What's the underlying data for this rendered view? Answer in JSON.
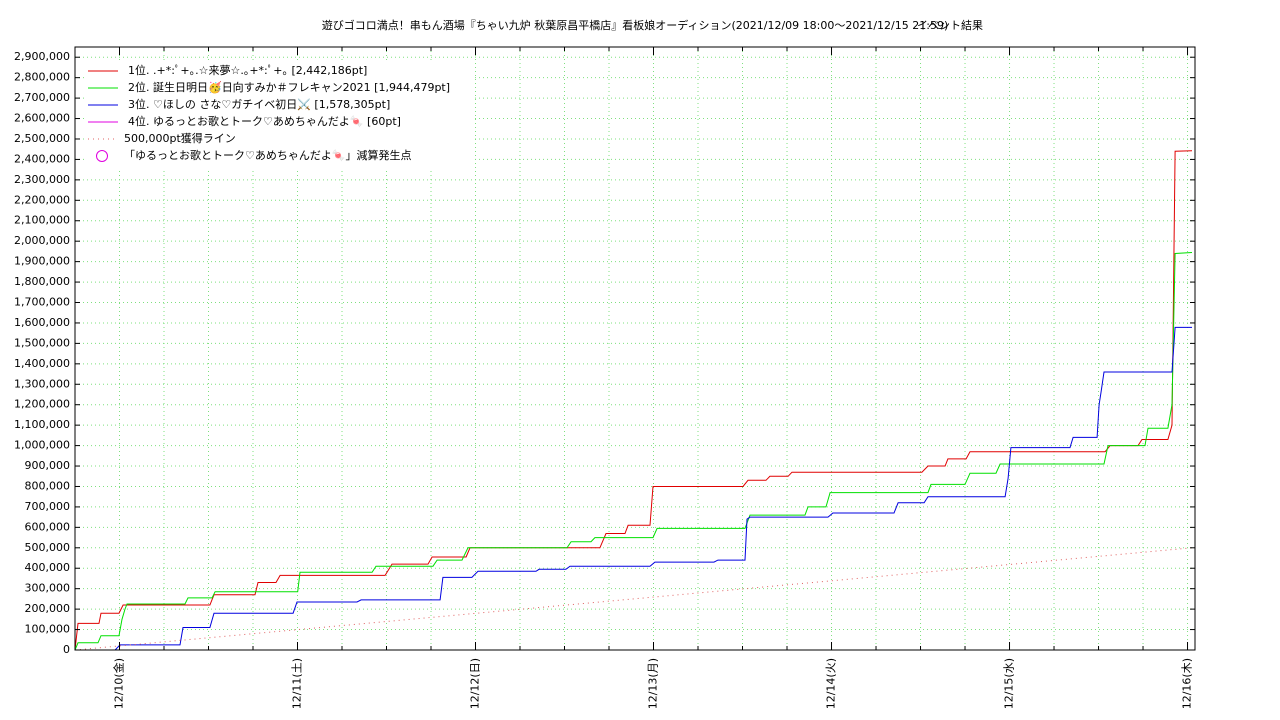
{
  "chart_data": {
    "type": "line",
    "title": "遊びゴコロ満点！串もん酒場『ちゃい九炉 秋葉原昌平橋店』看板娘オーディション(2021/12/09 18:00〜2021/12/15 21:59)",
    "subtitle": "イベント結果",
    "xlim": [
      9.75,
      16.042
    ],
    "xticks": [
      {
        "value": 10,
        "label": "12/10(金)"
      },
      {
        "value": 11,
        "label": "12/11(土)"
      },
      {
        "value": 12,
        "label": "12/12(日)"
      },
      {
        "value": 13,
        "label": "12/13(月)"
      },
      {
        "value": 14,
        "label": "12/14(火)"
      },
      {
        "value": 15,
        "label": "12/15(水)"
      },
      {
        "value": 16,
        "label": "12/16(木)"
      }
    ],
    "xminorticks": [
      10.25,
      10.5,
      10.75,
      11.25,
      11.5,
      11.75,
      12.25,
      12.5,
      12.75,
      13.25,
      13.5,
      13.75,
      14.25,
      14.5,
      14.75,
      15.25,
      15.5,
      15.75
    ],
    "ylim": [
      0,
      2950000
    ],
    "yticks": [
      {
        "value": 0,
        "label": "0"
      },
      {
        "value": 100000,
        "label": "100,000"
      },
      {
        "value": 200000,
        "label": "200,000"
      },
      {
        "value": 300000,
        "label": "300,000"
      },
      {
        "value": 400000,
        "label": "400,000"
      },
      {
        "value": 500000,
        "label": "500,000"
      },
      {
        "value": 600000,
        "label": "600,000"
      },
      {
        "value": 700000,
        "label": "700,000"
      },
      {
        "value": 800000,
        "label": "800,000"
      },
      {
        "value": 900000,
        "label": "900,000"
      },
      {
        "value": 1000000,
        "label": "1,000,000"
      },
      {
        "value": 1100000,
        "label": "1,100,000"
      },
      {
        "value": 1200000,
        "label": "1,200,000"
      },
      {
        "value": 1300000,
        "label": "1,300,000"
      },
      {
        "value": 1400000,
        "label": "1,400,000"
      },
      {
        "value": 1500000,
        "label": "1,500,000"
      },
      {
        "value": 1600000,
        "label": "1,600,000"
      },
      {
        "value": 1700000,
        "label": "1,700,000"
      },
      {
        "value": 1800000,
        "label": "1,800,000"
      },
      {
        "value": 1900000,
        "label": "1,900,000"
      },
      {
        "value": 2000000,
        "label": "2,000,000"
      },
      {
        "value": 2100000,
        "label": "2,100,000"
      },
      {
        "value": 2200000,
        "label": "2,200,000"
      },
      {
        "value": 2300000,
        "label": "2,300,000"
      },
      {
        "value": 2400000,
        "label": "2,400,000"
      },
      {
        "value": 2500000,
        "label": "2,500,000"
      },
      {
        "value": 2600000,
        "label": "2,600,000"
      },
      {
        "value": 2700000,
        "label": "2,700,000"
      },
      {
        "value": 2800000,
        "label": "2,800,000"
      },
      {
        "value": 2900000,
        "label": "2,900,000"
      }
    ],
    "grid": true,
    "grid_color": "#7fe07f",
    "legend": "upper left",
    "series": [
      {
        "name": "1位. .+*:ﾟ+｡.☆来夢☆.｡+*:ﾟ+｡ [2,442,186pt]",
        "color": "#e00000",
        "style": "solid",
        "x": [
          9.75,
          9.767,
          9.885,
          9.896,
          9.997,
          10.02,
          10.508,
          10.531,
          10.761,
          10.778,
          10.879,
          10.902,
          11.492,
          11.531,
          11.733,
          11.756,
          11.947,
          11.969,
          12.699,
          12.733,
          12.84,
          12.857,
          12.98,
          12.997,
          13.503,
          13.531,
          13.632,
          13.654,
          13.756,
          13.778,
          14.508,
          14.542,
          14.638,
          14.654,
          14.756,
          14.778,
          15.537,
          15.565,
          15.722,
          15.744,
          15.89,
          15.913,
          15.93,
          16.025
        ],
        "values": [
          0,
          130000,
          130000,
          180000,
          180000,
          220000,
          220000,
          270000,
          270000,
          330000,
          330000,
          365000,
          365000,
          420000,
          420000,
          455000,
          455000,
          500000,
          500000,
          570000,
          570000,
          610000,
          610000,
          800000,
          800000,
          830000,
          830000,
          850000,
          850000,
          870000,
          870000,
          900000,
          900000,
          935000,
          935000,
          970000,
          970000,
          1000000,
          1000000,
          1030000,
          1030000,
          1100000,
          2440000,
          2442186
        ]
      },
      {
        "name": "2位. 誕生日明日🥳日向すみか＃フレキャン2021 [1,944,479pt]",
        "color": "#00e000",
        "style": "solid",
        "x": [
          9.75,
          9.767,
          9.879,
          9.896,
          9.997,
          10.014,
          10.031,
          10.042,
          10.368,
          10.385,
          10.52,
          10.537,
          11.001,
          11.014,
          11.419,
          11.441,
          11.761,
          11.784,
          11.924,
          11.958,
          12.514,
          12.537,
          12.649,
          12.671,
          12.997,
          13.02,
          13.514,
          13.542,
          13.851,
          13.868,
          13.969,
          13.992,
          14.542,
          14.559,
          14.75,
          14.778,
          14.924,
          14.947,
          15.531,
          15.553,
          15.761,
          15.778,
          15.89,
          15.913,
          15.93,
          16.025
        ],
        "values": [
          0,
          35000,
          35000,
          70000,
          70000,
          150000,
          200000,
          225000,
          225000,
          255000,
          255000,
          285000,
          285000,
          380000,
          380000,
          410000,
          410000,
          440000,
          440000,
          500000,
          500000,
          530000,
          530000,
          550000,
          550000,
          595000,
          595000,
          660000,
          660000,
          700000,
          700000,
          770000,
          770000,
          810000,
          810000,
          865000,
          865000,
          910000,
          910000,
          1000000,
          1000000,
          1085000,
          1085000,
          1200000,
          1940000,
          1944479
        ]
      },
      {
        "name": "3位. ♡ほしの さな♡ガチイベ初日⚔️ [1,578,305pt]",
        "color": "#0000e0",
        "style": "solid",
        "x": [
          9.975,
          10.003,
          10.34,
          10.357,
          10.508,
          10.531,
          10.975,
          10.997,
          11.334,
          11.357,
          11.801,
          11.817,
          11.98,
          12.014,
          12.34,
          12.357,
          12.508,
          12.531,
          12.98,
          13.008,
          13.34,
          13.362,
          13.514,
          13.525,
          13.542,
          13.98,
          14.008,
          14.351,
          14.374,
          14.52,
          14.542,
          14.975,
          14.992,
          15.008,
          15.34,
          15.357,
          15.492,
          15.503,
          15.514,
          15.531,
          15.913,
          15.93,
          16.025
        ],
        "values": [
          0,
          25000,
          25000,
          110000,
          110000,
          180000,
          180000,
          235000,
          235000,
          245000,
          245000,
          355000,
          355000,
          385000,
          385000,
          395000,
          395000,
          410000,
          410000,
          430000,
          430000,
          440000,
          440000,
          640000,
          650000,
          650000,
          670000,
          670000,
          720000,
          720000,
          750000,
          750000,
          840000,
          990000,
          990000,
          1040000,
          1040000,
          1200000,
          1260000,
          1360000,
          1360000,
          1578305,
          1578305
        ]
      },
      {
        "name": "4位. ゆるっとお歌とトーク♡あめちゃんだよ🍬 [60pt]",
        "color": "#e000e0",
        "style": "solid",
        "x": [
          15.677,
          16.025
        ],
        "values": [
          0,
          60
        ]
      },
      {
        "name": "500,000pt獲得ライン",
        "color": "#e06060",
        "style": "dotted",
        "x": [
          9.75,
          16.025
        ],
        "values": [
          0,
          500000
        ]
      },
      {
        "name": "「ゆるっとお歌とトーク♡あめちゃんだよ🍬」減算発生点",
        "color": "#e000e0",
        "style": "circle"
      }
    ]
  }
}
